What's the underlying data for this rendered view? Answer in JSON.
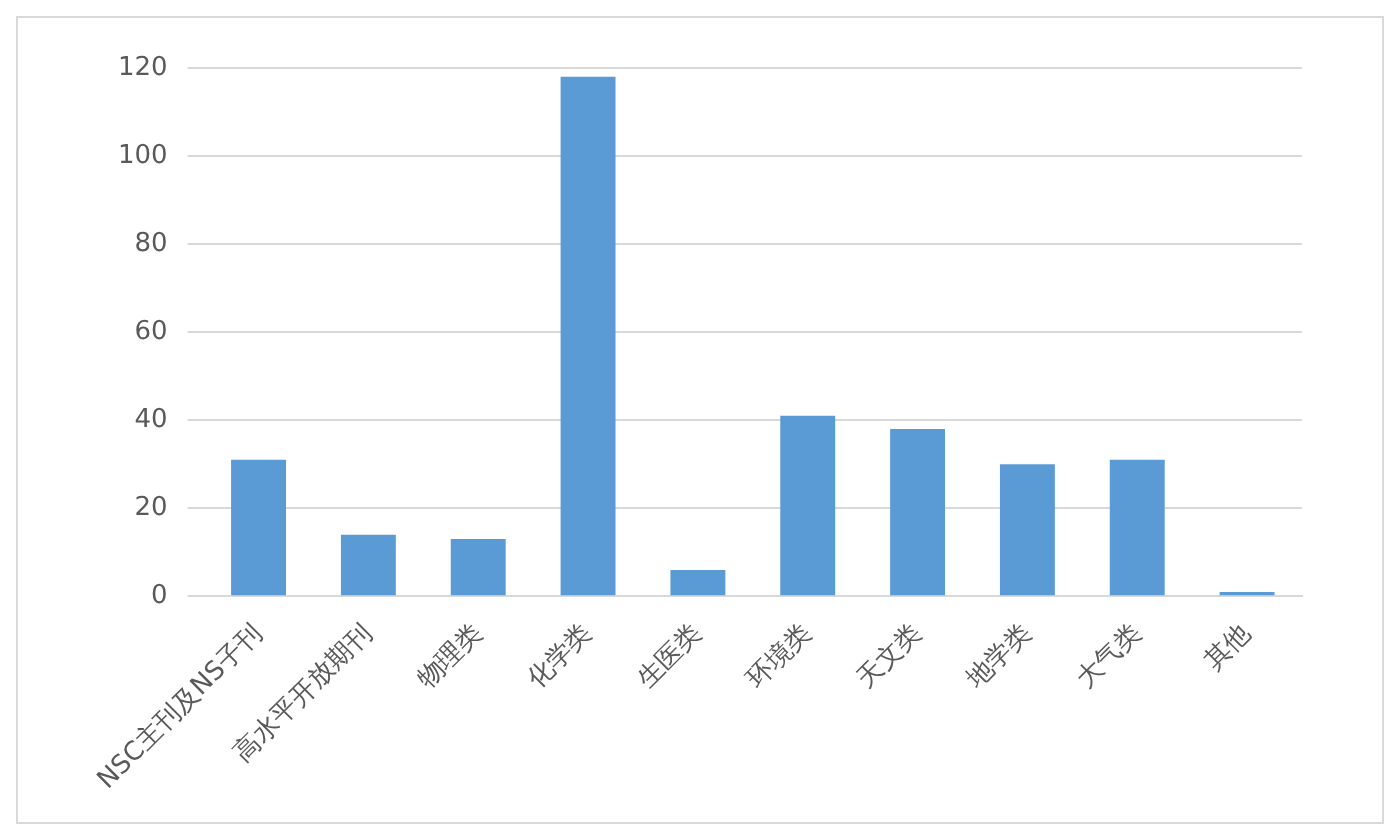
{
  "chart_data": {
    "type": "bar",
    "categories": [
      "NSC主刊及NS子刊",
      "高水平开放期刊",
      "物理类",
      "化学类",
      "生医类",
      "环境类",
      "天文类",
      "地学类",
      "大气类",
      "其他"
    ],
    "values": [
      31,
      14,
      13,
      118,
      6,
      41,
      38,
      30,
      31,
      1
    ],
    "color": "#5b9bd5",
    "ylim": [
      0,
      120
    ],
    "yticks": [
      0,
      20,
      40,
      60,
      80,
      100,
      120
    ],
    "grid": "y",
    "legend": false
  }
}
